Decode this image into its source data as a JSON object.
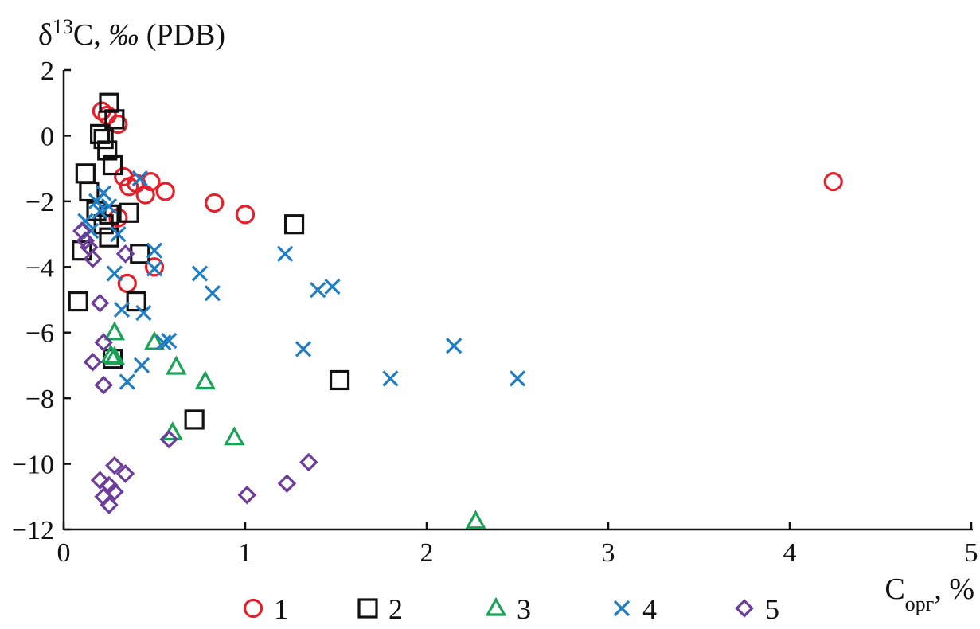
{
  "chart_data": {
    "type": "scatter",
    "title": "",
    "ylabel": {
      "delta": "δ",
      "sup": "13",
      "element": "C, ",
      "permil": "‰",
      "scale": " (PDB)"
    },
    "xlabel": {
      "base": "C",
      "sub": "орг",
      "unit": ", %"
    },
    "xlim": [
      0,
      5
    ],
    "ylim": [
      -12,
      2
    ],
    "x_ticks": [
      "0",
      "1",
      "2",
      "3",
      "4",
      "5"
    ],
    "y_ticks": [
      "2",
      "0",
      "−2",
      "−4",
      "−6",
      "−8",
      "−10",
      "−12"
    ],
    "legend_position": "bottom",
    "grid": false,
    "series": [
      {
        "name": "1",
        "marker": "circle",
        "color": "#e4202c",
        "points": [
          [
            0.21,
            0.75
          ],
          [
            0.24,
            0.62
          ],
          [
            0.3,
            0.35
          ],
          [
            0.33,
            -1.25
          ],
          [
            0.36,
            -1.55
          ],
          [
            0.4,
            -1.45
          ],
          [
            0.45,
            -1.8
          ],
          [
            0.48,
            -1.4
          ],
          [
            0.56,
            -1.7
          ],
          [
            0.83,
            -2.05
          ],
          [
            1.0,
            -2.4
          ],
          [
            0.35,
            -4.5
          ],
          [
            0.5,
            -4.0
          ],
          [
            0.3,
            -2.5
          ],
          [
            4.24,
            -1.4
          ]
        ]
      },
      {
        "name": "2",
        "marker": "square",
        "color": "#111111",
        "points": [
          [
            0.25,
            1.0
          ],
          [
            0.28,
            0.5
          ],
          [
            0.2,
            0.05
          ],
          [
            0.22,
            -0.1
          ],
          [
            0.24,
            -0.45
          ],
          [
            0.27,
            -0.9
          ],
          [
            0.12,
            -1.15
          ],
          [
            0.14,
            -1.7
          ],
          [
            0.18,
            -2.3
          ],
          [
            0.25,
            -2.4
          ],
          [
            0.36,
            -2.35
          ],
          [
            0.22,
            -2.7
          ],
          [
            0.25,
            -3.1
          ],
          [
            0.1,
            -3.5
          ],
          [
            0.42,
            -3.6
          ],
          [
            0.08,
            -5.05
          ],
          [
            0.4,
            -5.05
          ],
          [
            0.27,
            -6.8
          ],
          [
            1.27,
            -2.7
          ],
          [
            1.52,
            -7.45
          ],
          [
            0.72,
            -8.65
          ]
        ]
      },
      {
        "name": "3",
        "marker": "triangle",
        "color": "#1aa256",
        "points": [
          [
            0.28,
            -6.0
          ],
          [
            0.26,
            -6.7
          ],
          [
            0.28,
            -6.75
          ],
          [
            0.5,
            -6.3
          ],
          [
            0.62,
            -7.05
          ],
          [
            0.78,
            -7.5
          ],
          [
            0.6,
            -9.05
          ],
          [
            0.94,
            -9.2
          ],
          [
            2.27,
            -11.75
          ]
        ]
      },
      {
        "name": "4",
        "marker": "cross",
        "color": "#1f7dc3",
        "points": [
          [
            0.12,
            -2.6
          ],
          [
            0.15,
            -2.9
          ],
          [
            0.18,
            -2.0
          ],
          [
            0.2,
            -2.3
          ],
          [
            0.22,
            -1.75
          ],
          [
            0.25,
            -2.15
          ],
          [
            0.28,
            -4.2
          ],
          [
            0.3,
            -3.0
          ],
          [
            0.32,
            -5.3
          ],
          [
            0.35,
            -7.5
          ],
          [
            0.42,
            -1.3
          ],
          [
            0.44,
            -5.4
          ],
          [
            0.43,
            -7.0
          ],
          [
            0.5,
            -3.5
          ],
          [
            0.5,
            -4.05
          ],
          [
            0.55,
            -6.3
          ],
          [
            0.58,
            -6.25
          ],
          [
            0.75,
            -4.2
          ],
          [
            0.82,
            -4.8
          ],
          [
            1.22,
            -3.6
          ],
          [
            1.32,
            -6.5
          ],
          [
            1.4,
            -4.7
          ],
          [
            1.48,
            -4.6
          ],
          [
            1.8,
            -7.4
          ],
          [
            2.15,
            -6.4
          ],
          [
            2.5,
            -7.4
          ]
        ]
      },
      {
        "name": "5",
        "marker": "diamond",
        "color": "#6c3d9a",
        "points": [
          [
            0.1,
            -2.9
          ],
          [
            0.12,
            -3.2
          ],
          [
            0.14,
            -3.4
          ],
          [
            0.16,
            -3.75
          ],
          [
            0.34,
            -3.6
          ],
          [
            0.2,
            -5.1
          ],
          [
            0.22,
            -6.3
          ],
          [
            0.16,
            -6.9
          ],
          [
            0.22,
            -7.6
          ],
          [
            0.58,
            -9.25
          ],
          [
            0.2,
            -10.5
          ],
          [
            0.28,
            -10.05
          ],
          [
            0.34,
            -10.3
          ],
          [
            0.25,
            -10.65
          ],
          [
            0.22,
            -11.0
          ],
          [
            0.25,
            -11.25
          ],
          [
            0.28,
            -10.85
          ],
          [
            1.01,
            -10.95
          ],
          [
            1.23,
            -10.6
          ],
          [
            1.35,
            -9.95
          ]
        ]
      }
    ]
  }
}
